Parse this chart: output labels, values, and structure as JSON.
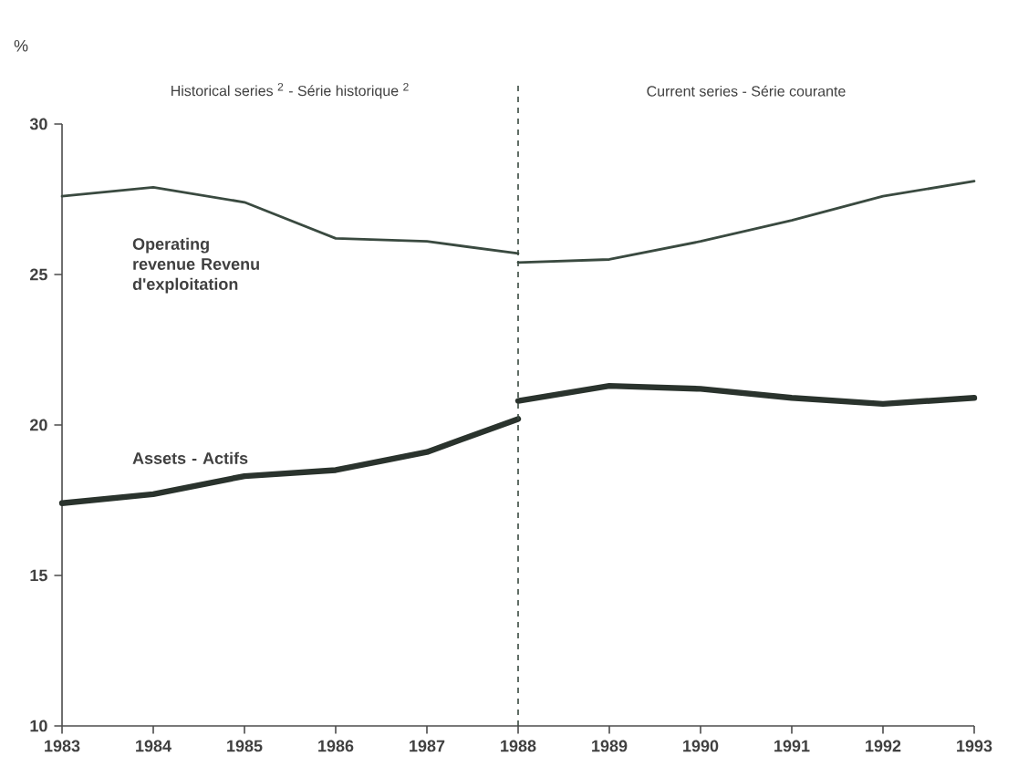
{
  "chart_data": {
    "type": "line",
    "ylabel": "%",
    "series": [
      {
        "name": "Operating revenue Revenu d'exploitation",
        "color": "#3a4a40",
        "x": [
          1983,
          1984,
          1985,
          1986,
          1987,
          1988
        ],
        "values": [
          27.6,
          27.9,
          27.4,
          26.2,
          26.1,
          25.7
        ]
      },
      {
        "color": "#3a4a40",
        "x": [
          1988,
          1989,
          1990,
          1991,
          1992,
          1993
        ],
        "values": [
          25.4,
          25.5,
          26.1,
          26.8,
          27.6,
          28.1
        ]
      },
      {
        "name": "Assets - Actifs",
        "color": "#2a332d",
        "x": [
          1983,
          1984,
          1985,
          1986,
          1987,
          1988
        ],
        "values": [
          17.4,
          17.7,
          18.3,
          18.5,
          19.1,
          20.2
        ]
      },
      {
        "color": "#2a332d",
        "x": [
          1988,
          1989,
          1990,
          1991,
          1992,
          1993
        ],
        "values": [
          20.8,
          21.3,
          21.2,
          20.9,
          20.7,
          20.9
        ]
      }
    ],
    "xlim": [
      1983,
      1993
    ],
    "ylim": [
      10,
      30
    ],
    "xticks": [
      1983,
      1984,
      1985,
      1986,
      1987,
      1988,
      1989,
      1990,
      1991,
      1992,
      1993
    ],
    "yticks": [
      10,
      15,
      20,
      25,
      30
    ],
    "ref_lines": [
      {
        "axis": "x",
        "value": 1988,
        "line_style": "dashed",
        "color": "#3a4a40"
      }
    ],
    "annotations": [
      "Historical series $^{2}$ - Série historique $^{2}$",
      "Current series - Série courante"
    ],
    "grid": false,
    "marker": "none",
    "line_style": "solid"
  }
}
